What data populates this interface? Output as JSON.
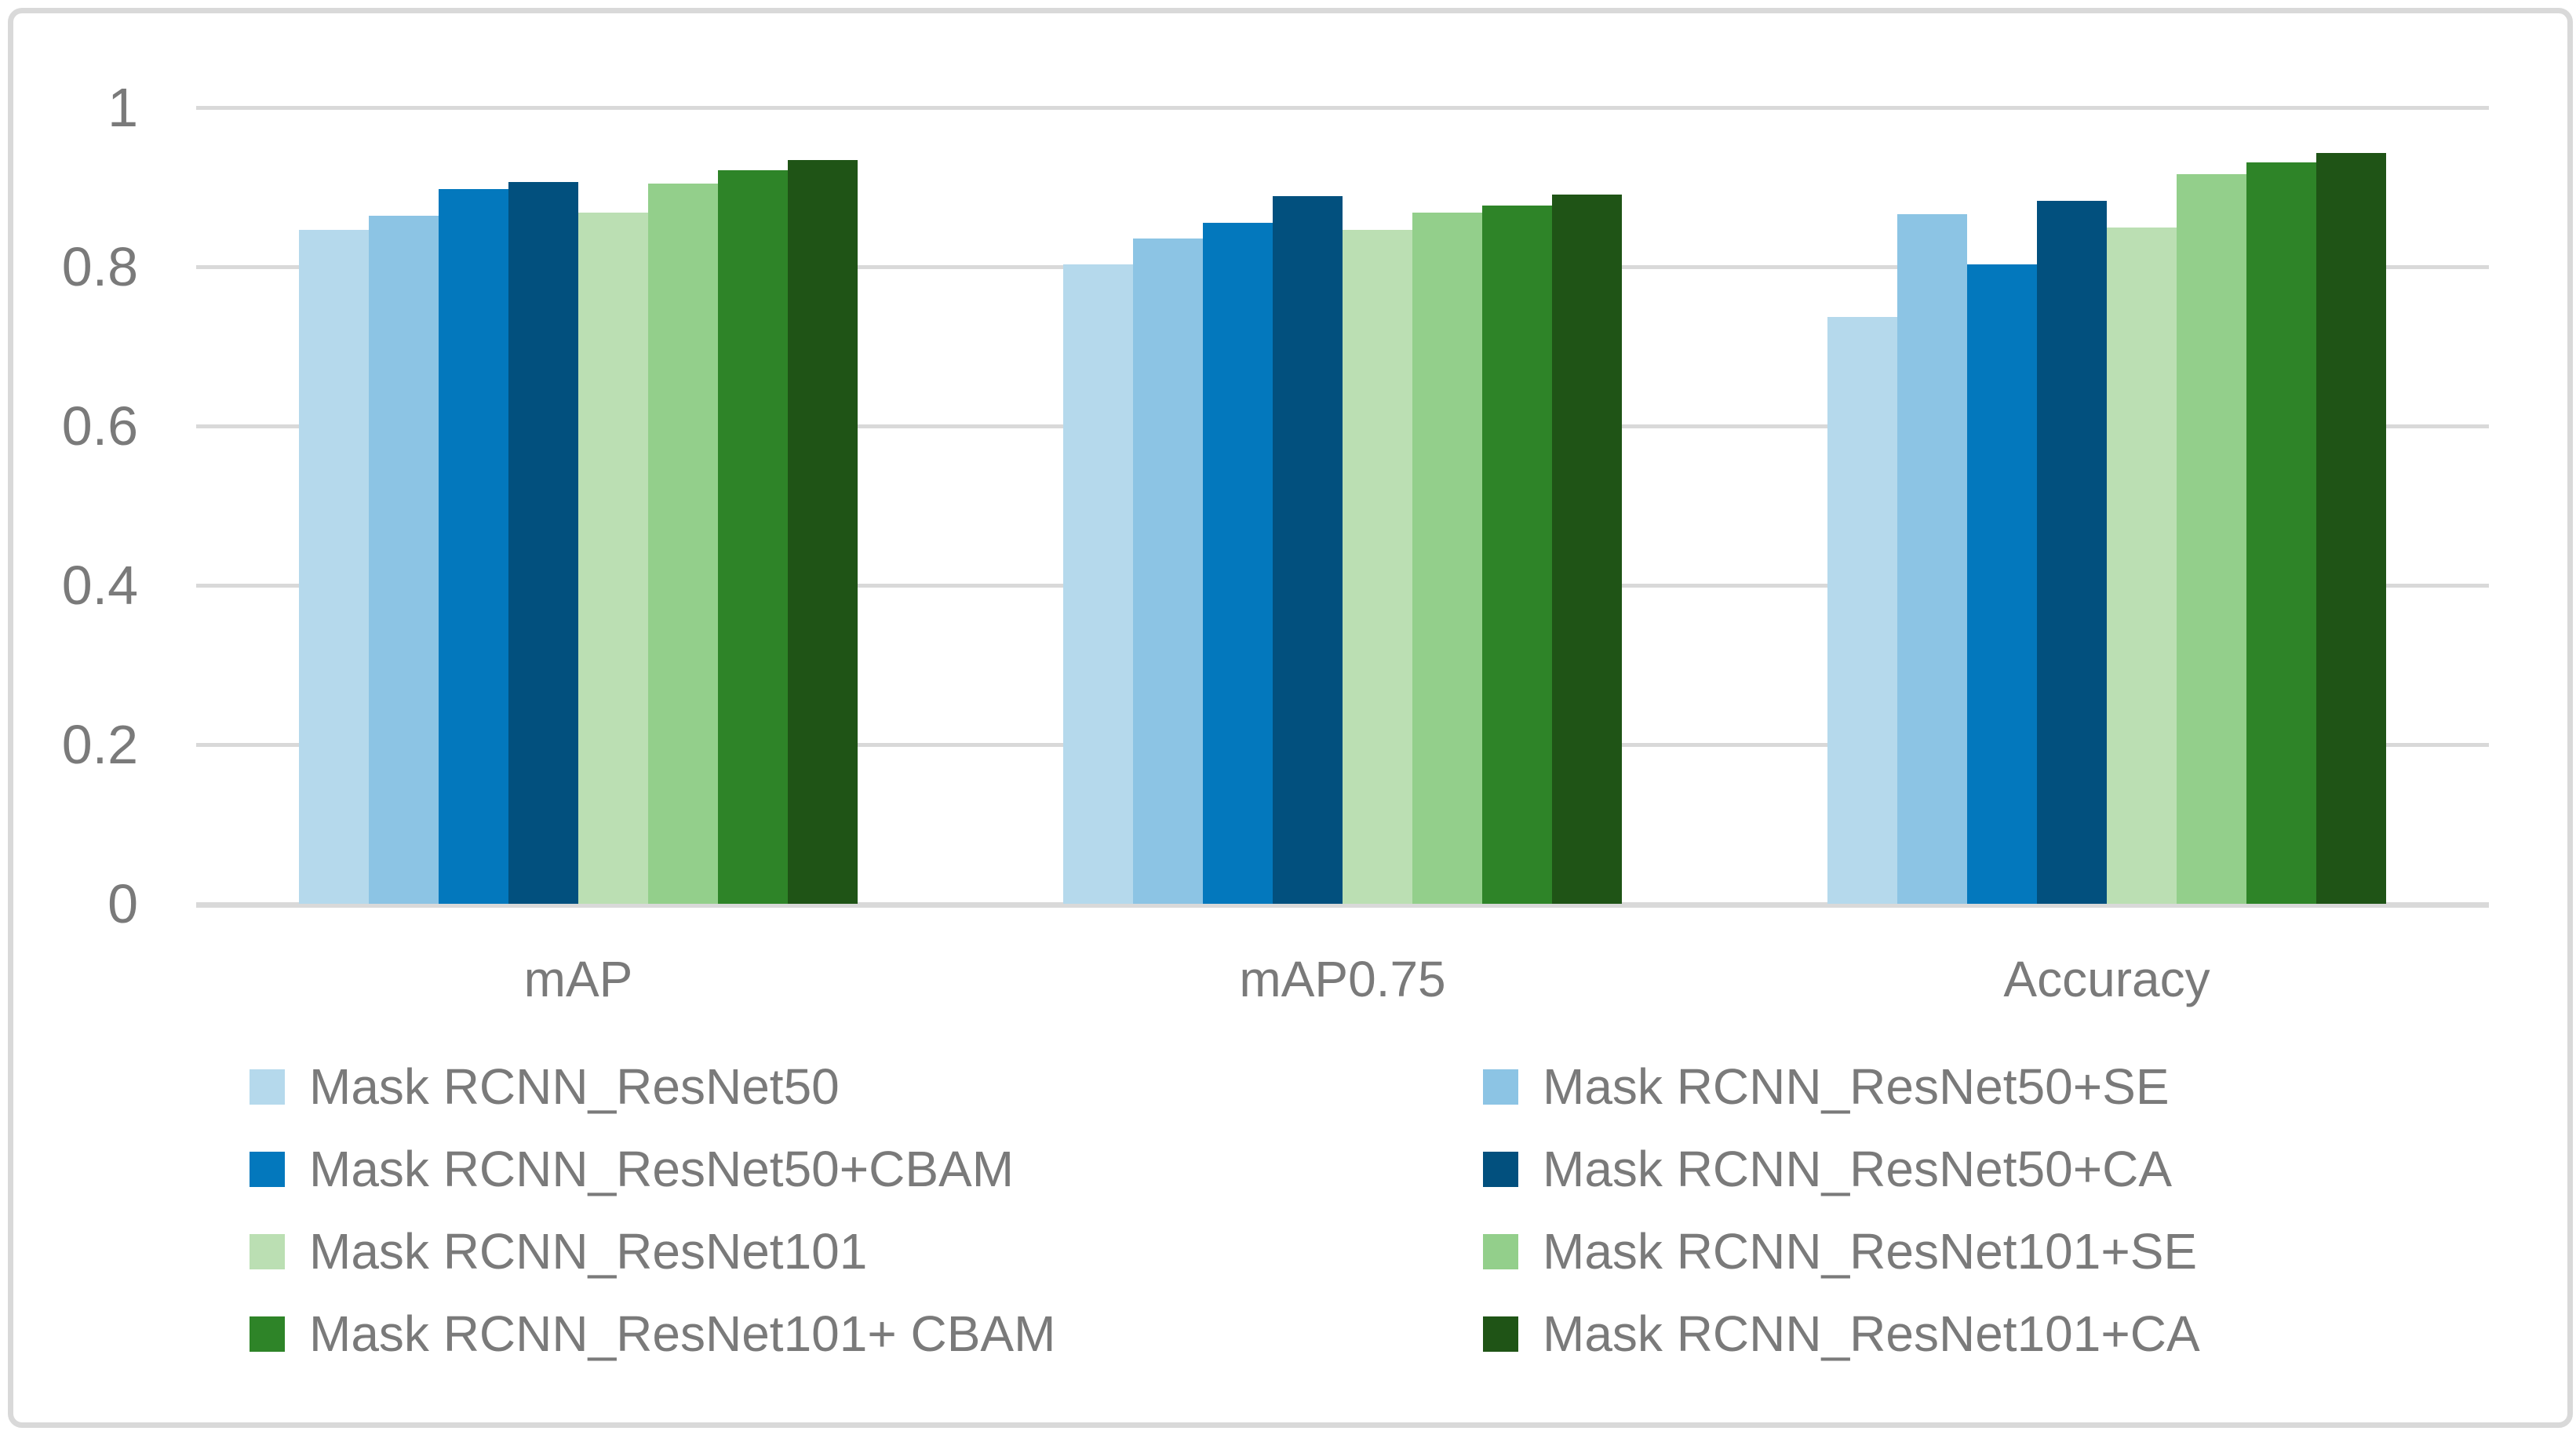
{
  "chart_data": {
    "type": "bar",
    "title": "",
    "xlabel": "",
    "ylabel": "",
    "categories": [
      "mAP",
      "mAP0.75",
      "Accuracy"
    ],
    "series": [
      {
        "name": "Mask RCNN_ResNet50",
        "color": "#B5D9EC",
        "values": [
          0.846,
          0.803,
          0.737
        ]
      },
      {
        "name": "Mask RCNN_ResNet50+SE",
        "color": "#8CC4E4",
        "values": [
          0.864,
          0.835,
          0.866
        ]
      },
      {
        "name": "Mask RCNN_ResNet50+CBAM",
        "color": "#0378BD",
        "values": [
          0.898,
          0.855,
          0.803
        ]
      },
      {
        "name": "Mask RCNN_ResNet50+CA",
        "color": "#02507E",
        "values": [
          0.906,
          0.889,
          0.883
        ]
      },
      {
        "name": "Mask RCNN_ResNet101",
        "color": "#BBDFB3",
        "values": [
          0.868,
          0.846,
          0.849
        ]
      },
      {
        "name": "Mask RCNN_ResNet101+SE",
        "color": "#93CF8B",
        "values": [
          0.904,
          0.868,
          0.916
        ]
      },
      {
        "name": "Mask RCNN_ResNet101+ CBAM",
        "color": "#2E8428",
        "values": [
          0.921,
          0.877,
          0.931
        ]
      },
      {
        "name": "Mask RCNN_ResNet101+CA",
        "color": "#1F5416",
        "values": [
          0.934,
          0.891,
          0.943
        ]
      }
    ],
    "legend": [
      {
        "label": "Mask RCNN_ResNet50",
        "color": "#B5D9EC"
      },
      {
        "label": "Mask RCNN_ResNet50+SE",
        "color": "#8CC4E4"
      },
      {
        "label": "Mask RCNN_ResNet50+CBAM",
        "color": "#0378BD"
      },
      {
        "label": "Mask RCNN_ResNet50+CA",
        "color": "#02507E"
      },
      {
        "label": "Mask RCNN_ResNet101",
        "color": "#BBDFB3"
      },
      {
        "label": "Mask RCNN_ResNet101+SE",
        "color": "#93CF8B"
      },
      {
        "label": "Mask RCNN_ResNet101+ CBAM",
        "color": "#2E8428"
      },
      {
        "label": "Mask RCNN_ResNet101+CA",
        "color": "#1F5416"
      }
    ],
    "yticks": [
      {
        "label": "0",
        "value": 0.0
      },
      {
        "label": "0.2",
        "value": 0.2
      },
      {
        "label": "0.4",
        "value": 0.4
      },
      {
        "label": "0.6",
        "value": 0.6
      },
      {
        "label": "0.8",
        "value": 0.8
      },
      {
        "label": "1",
        "value": 1.0
      }
    ],
    "ylim": [
      0,
      1
    ],
    "grid": true,
    "legend_position": "bottom-two-columns",
    "style": {
      "text_color": "#7a7a7a",
      "gridline_color": "#d9d9d9",
      "border_color": "#d9d9d9",
      "background_color": "#ffffff"
    }
  }
}
